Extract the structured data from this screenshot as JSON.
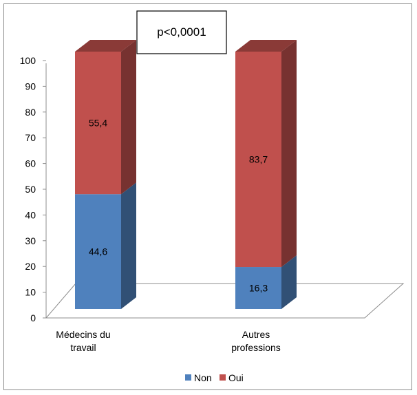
{
  "chart_data": {
    "type": "bar",
    "stacked": true,
    "three_d": true,
    "categories": [
      [
        "Médecins du",
        "travail"
      ],
      [
        "Autres",
        "professions"
      ]
    ],
    "series": [
      {
        "name": "Non",
        "values": [
          44.6,
          16.3
        ],
        "color": "#4f81bd"
      },
      {
        "name": "Oui",
        "values": [
          55.4,
          83.7
        ],
        "color": "#c0504d"
      }
    ],
    "value_labels": [
      [
        "44,6",
        "16,3"
      ],
      [
        "55,4",
        "83,7"
      ]
    ],
    "ylim": [
      0,
      100
    ],
    "yticks": [
      0,
      10,
      20,
      30,
      40,
      50,
      60,
      70,
      80,
      90,
      100
    ],
    "grid": false,
    "legend_position": "bottom",
    "annotation": "p<0,0001"
  }
}
